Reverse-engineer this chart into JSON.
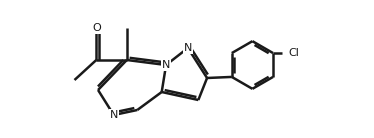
{
  "bg_color": "#ffffff",
  "line_color": "#1a1a1a",
  "line_width": 1.8,
  "figsize": [
    3.74,
    1.38
  ],
  "dpi": 100,
  "xlim": [
    -1.5,
    11.5
  ],
  "ylim": [
    -0.5,
    5.0
  ]
}
